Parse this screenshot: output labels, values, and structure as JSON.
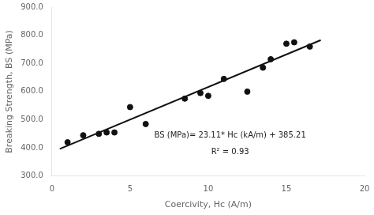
{
  "chart_data": {
    "type": "scatter",
    "x_label": "Coercivity, Hc (A/m)",
    "y_label": "Breaking Strength, BS (MPa)",
    "annotations": [
      "BS (MPa)= 23.11* Hc (kA/m) + 385.21",
      "R² = 0.93"
    ],
    "xlim": [
      0,
      20
    ],
    "ylim": [
      300,
      900
    ],
    "xticks": [
      0,
      5,
      10,
      15,
      20
    ],
    "yticks": [
      {
        "value": 300,
        "label": "300.0"
      },
      {
        "value": 400,
        "label": "400.0"
      },
      {
        "value": 500,
        "label": "500.0"
      },
      {
        "value": 600,
        "label": "600.0"
      },
      {
        "value": 700,
        "label": "700.0"
      },
      {
        "value": 800,
        "label": "800.0"
      },
      {
        "value": 900,
        "label": "900.0"
      }
    ],
    "grid": false,
    "series": [
      {
        "type": "scatter",
        "color": "#111111",
        "marker": "circle",
        "x": [
          1.0,
          2.0,
          3.0,
          3.5,
          4.0,
          5.0,
          6.0,
          8.5,
          9.5,
          10.0,
          11.0,
          12.5,
          13.5,
          14.0,
          15.0,
          15.5,
          16.5
        ],
        "values": [
          420,
          445,
          450,
          455,
          455,
          545,
          485,
          575,
          595,
          585,
          645,
          600,
          685,
          715,
          770,
          775,
          760
        ]
      },
      {
        "type": "line",
        "color": "#111111",
        "line_style": "solid",
        "x": [
          0.5,
          17.2
        ],
        "values": [
          396.765,
          782.702
        ]
      }
    ]
  }
}
